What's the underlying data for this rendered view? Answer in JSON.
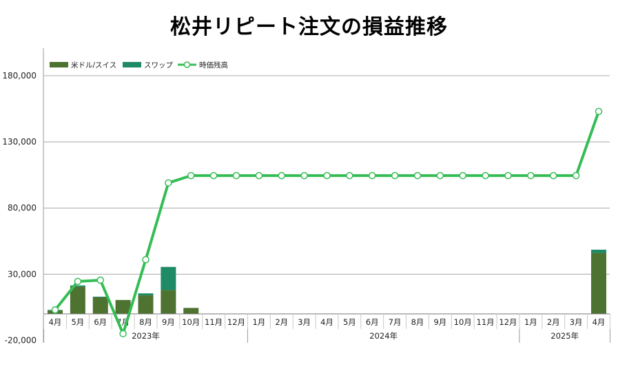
{
  "title": "松井リピート注文の損益推移",
  "chart_data": {
    "type": "bar+line",
    "title": "松井リピート注文の損益推移",
    "legend": {
      "placement": "top-left",
      "entries": [
        "米ドル/スイス",
        "スワップ",
        "時価残高"
      ]
    },
    "colors": {
      "usdchf": "#4e7230",
      "swap": "#1f8a66",
      "balance": "#35bd55",
      "negative_tick": "#e00000"
    },
    "y_axis": {
      "min": -20000,
      "max": 200000,
      "ticks": [
        180000,
        130000,
        80000,
        30000,
        -20000
      ],
      "tick_labels": [
        "180,000",
        "130,000",
        "80,000",
        "30,000",
        "-20,000"
      ]
    },
    "months": [
      "4月",
      "5月",
      "6月",
      "7月",
      "8月",
      "9月",
      "10月",
      "11月",
      "12月",
      "1月",
      "2月",
      "3月",
      "4月",
      "5月",
      "6月",
      "7月",
      "8月",
      "9月",
      "10月",
      "11月",
      "12月",
      "1月",
      "2月",
      "3月",
      "4月"
    ],
    "years": [
      {
        "label": "2023年",
        "count": 9
      },
      {
        "label": "2024年",
        "count": 12
      },
      {
        "label": "2025年",
        "count": 4
      }
    ],
    "series": [
      {
        "name": "米ドル/スイス",
        "type": "bar",
        "values": [
          2500,
          20500,
          12500,
          10500,
          14000,
          18000,
          4500,
          0,
          0,
          0,
          0,
          0,
          0,
          0,
          0,
          0,
          0,
          0,
          0,
          0,
          0,
          0,
          0,
          0,
          46000
        ]
      },
      {
        "name": "スワップ",
        "type": "bar",
        "values": [
          500,
          1000,
          500,
          0,
          1500,
          17500,
          0,
          0,
          0,
          0,
          0,
          0,
          0,
          0,
          0,
          0,
          0,
          0,
          0,
          0,
          0,
          0,
          0,
          0,
          2500
        ]
      },
      {
        "name": "時価残高",
        "type": "line",
        "values": [
          3000,
          24500,
          25500,
          -15000,
          41000,
          99000,
          104500,
          104500,
          104500,
          104500,
          104500,
          104500,
          104500,
          104500,
          104500,
          104500,
          104500,
          104500,
          104500,
          104500,
          104500,
          104500,
          104500,
          104500,
          153000
        ]
      }
    ]
  }
}
